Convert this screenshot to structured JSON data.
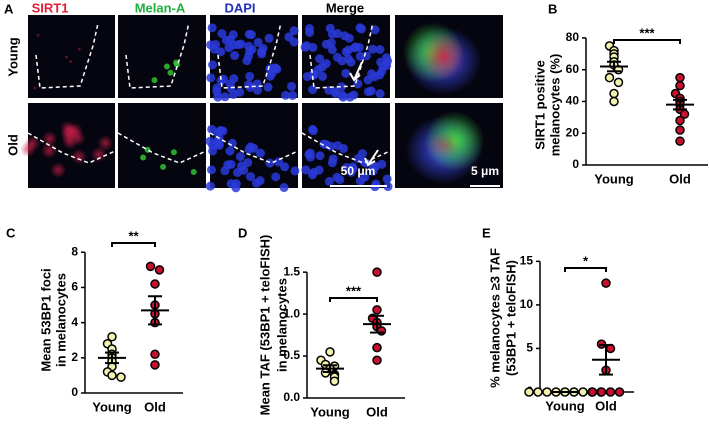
{
  "panel_a": {
    "panel_label": "A",
    "channels": [
      "SIRT1",
      "Melan-A",
      "DAPI",
      "Merge"
    ],
    "rows": [
      "Young",
      "Old"
    ],
    "scale_bars": [
      "50 μm",
      "5 μm"
    ]
  },
  "chart_data": [
    {
      "type": "dot",
      "panel_label": "B",
      "ylabel": [
        "SIRT1 positive",
        "melanocytes (%)"
      ],
      "categories": [
        "Young",
        "Old"
      ],
      "colors": [
        "#f2f2b0",
        "#c8102e"
      ],
      "points": [
        [
          75,
          72,
          70,
          68,
          65,
          63,
          60,
          55,
          52,
          45,
          40
        ],
        [
          55,
          50,
          45,
          42,
          40,
          38,
          35,
          32,
          28,
          22,
          15
        ]
      ],
      "means": [
        62,
        38
      ],
      "sem": [
        3,
        3
      ],
      "ylim": [
        0,
        85
      ],
      "yticks": [
        0,
        20,
        40,
        60,
        80
      ],
      "significance": "***"
    },
    {
      "type": "dot",
      "panel_label": "C",
      "ylabel": [
        "Mean 53BP1 foci",
        "in melanocytes"
      ],
      "categories": [
        "Young",
        "Old"
      ],
      "colors": [
        "#f2f2b0",
        "#c8102e"
      ],
      "points": [
        [
          3.2,
          2.8,
          2.5,
          2.2,
          2,
          1.8,
          1.5,
          1.2,
          1,
          0.9
        ],
        [
          7.2,
          7,
          6.2,
          5,
          4.5,
          4,
          2.2,
          1.6
        ]
      ],
      "means": [
        2,
        4.7
      ],
      "sem": [
        0.3,
        0.8
      ],
      "ylim": [
        0,
        8.3
      ],
      "yticks": [
        0,
        2,
        4,
        6,
        8
      ],
      "significance": "**"
    },
    {
      "type": "dot",
      "panel_label": "D",
      "ylabel": [
        "Mean TAF (53BP1 + teloFISH)",
        "in melanocytes"
      ],
      "categories": [
        "Young",
        "Old"
      ],
      "colors": [
        "#f2f2b0",
        "#c8102e"
      ],
      "points": [
        [
          0.55,
          0.45,
          0.4,
          0.38,
          0.35,
          0.3,
          0.28,
          0.25,
          0.2
        ],
        [
          1.5,
          1.05,
          0.95,
          0.9,
          0.85,
          0.8,
          0.6,
          0.45
        ]
      ],
      "means": [
        0.35,
        0.88
      ],
      "sem": [
        0.04,
        0.1
      ],
      "ylim": [
        0,
        1.8
      ],
      "yticks": [
        {
          "value": 0,
          "label": "0.0"
        },
        0.5,
        {
          "value": 1,
          "label": "1.0"
        },
        1.5
      ],
      "significance": "***"
    },
    {
      "type": "dot",
      "panel_label": "E",
      "ylabel": [
        "% melanocytes ≥3 TAF",
        "(53BP1 + teloFISH)"
      ],
      "categories": [
        "Young",
        "Old"
      ],
      "colors": [
        "#f2f2b0",
        "#c8102e"
      ],
      "points": [
        [
          0,
          0,
          0,
          0,
          0,
          0,
          0,
          0,
          0
        ],
        [
          12.5,
          5.5,
          5,
          2.5,
          0,
          0,
          0,
          0
        ]
      ],
      "means": [
        0,
        3.7
      ],
      "sem": [
        0,
        1.7
      ],
      "ylim": [
        0,
        15.5
      ],
      "yticks": [
        0,
        5,
        10,
        15
      ],
      "significance": "*"
    }
  ]
}
